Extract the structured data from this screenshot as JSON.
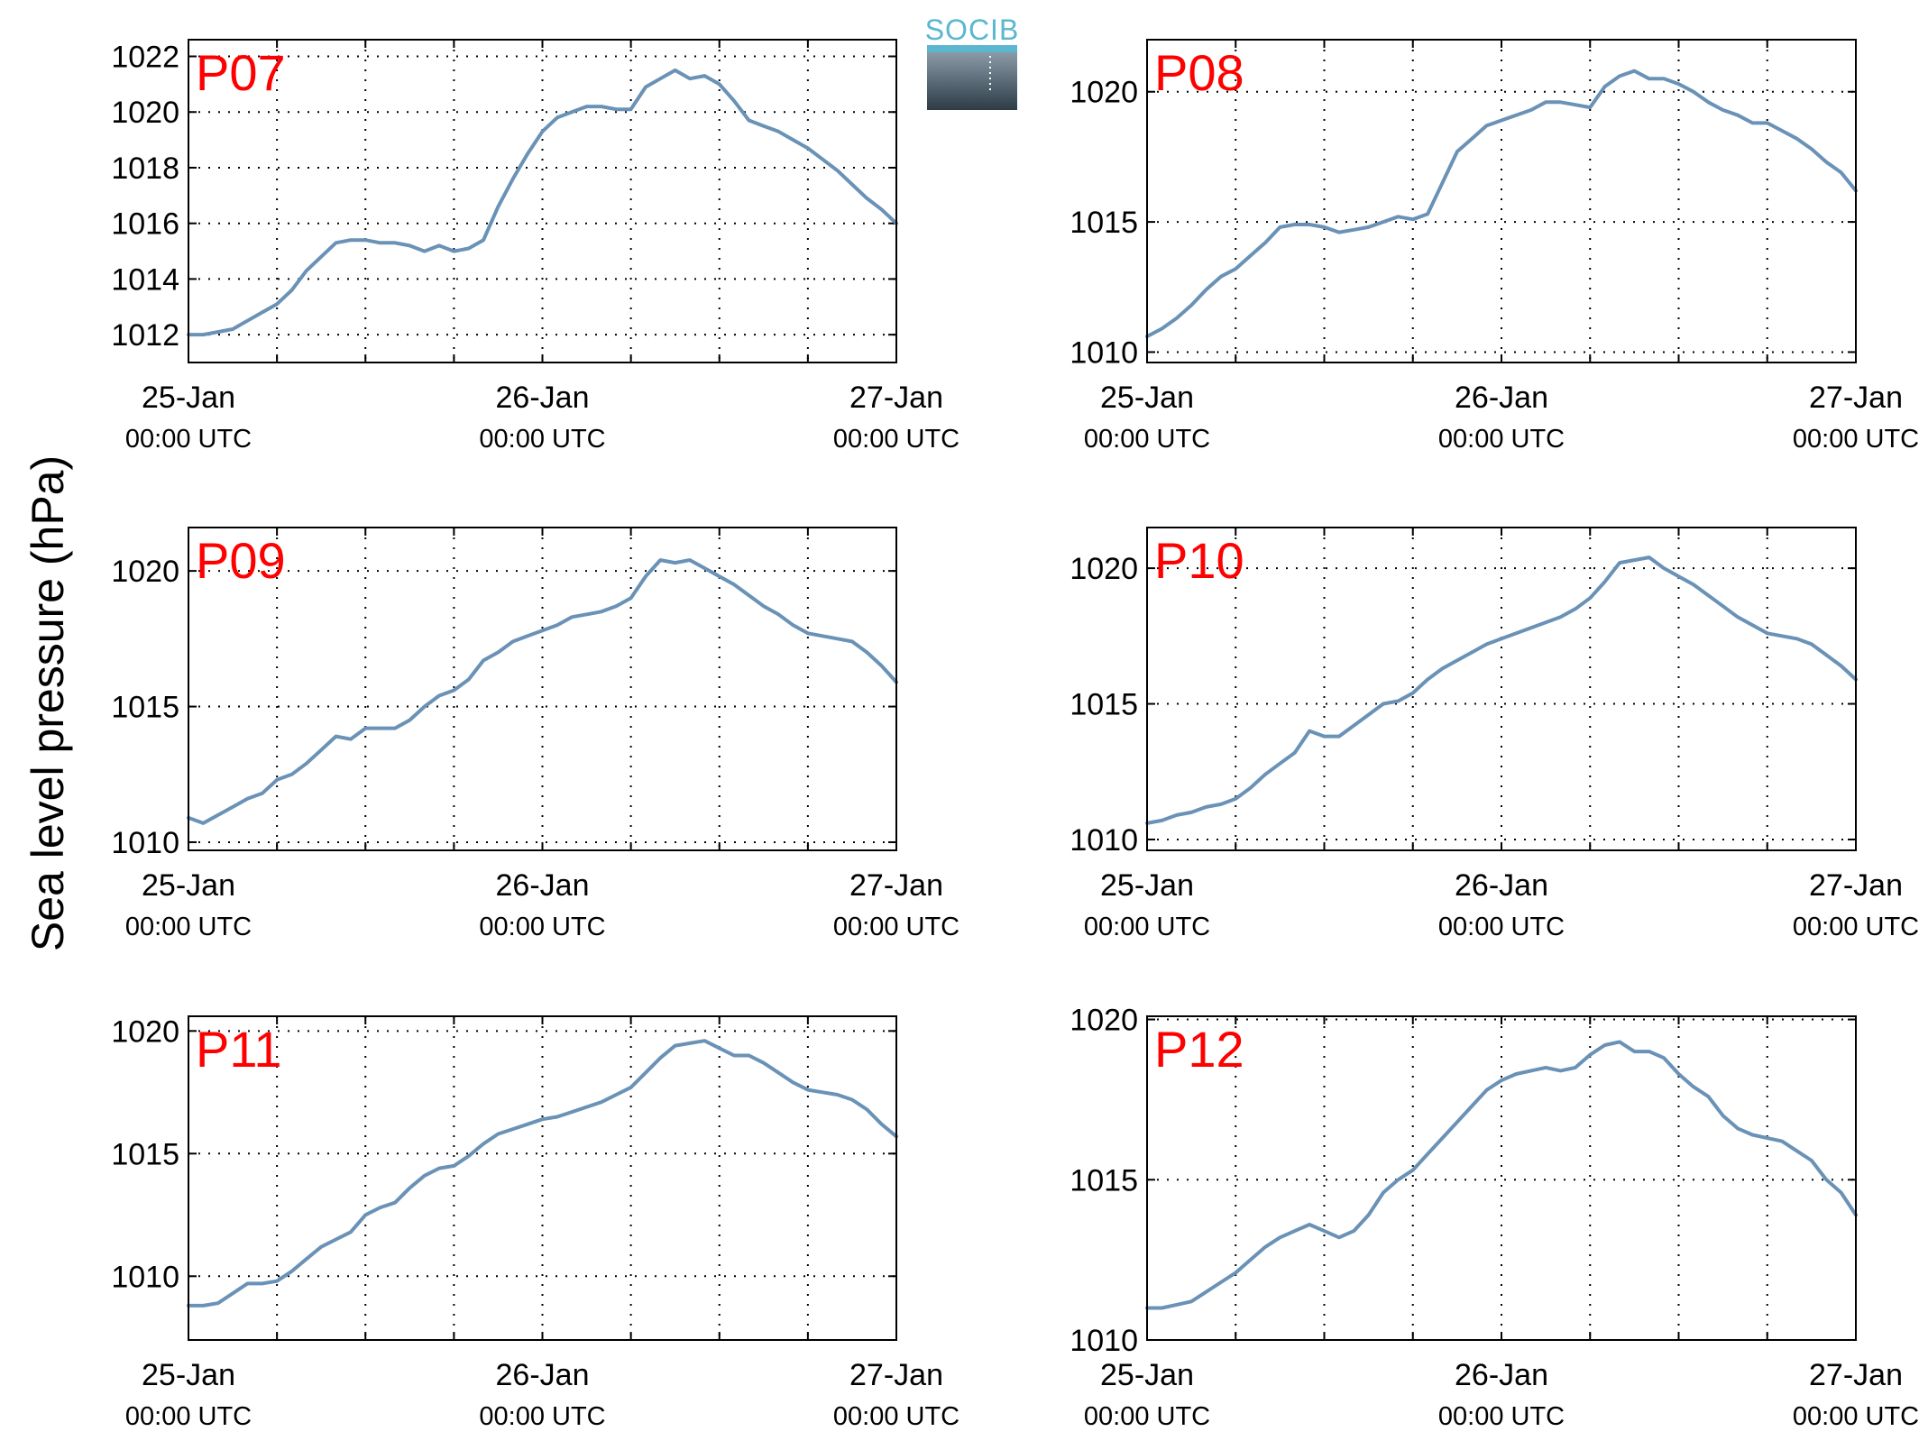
{
  "colors": {
    "series": "#6a92b6",
    "panel_label": "#ff0000",
    "logo_text": "#5ab7cf",
    "logo_top": "#8a9ba7",
    "logo_bottom": "#2d3c47"
  },
  "logo": {
    "text": "SOCIB"
  },
  "figure": {
    "ylabel": "Sea level pressure (hPa)"
  },
  "chart_data": [
    {
      "type": "line",
      "panel": "P07",
      "xlabel": "",
      "ylabel": "Sea level pressure (hPa)",
      "ylim": [
        1011,
        1022.6
      ],
      "xlim_hours": [
        0,
        48
      ],
      "yticks": [
        1012,
        1014,
        1016,
        1018,
        1020,
        1022
      ],
      "xticks": [
        {
          "date": "25-Jan",
          "time": "00:00 UTC"
        },
        {
          "date": "26-Jan",
          "time": "00:00 UTC"
        },
        {
          "date": "27-Jan",
          "time": "00:00 UTC"
        }
      ],
      "grid": true,
      "x": [
        0,
        1,
        2,
        3,
        4,
        5,
        6,
        7,
        8,
        9,
        10,
        11,
        12,
        13,
        14,
        15,
        16,
        17,
        18,
        19,
        20,
        21,
        22,
        23,
        24,
        25,
        26,
        27,
        28,
        29,
        30,
        31,
        32,
        33,
        34,
        35,
        36,
        37,
        38,
        39,
        40,
        41,
        42,
        43,
        44,
        45,
        46,
        47,
        48
      ],
      "y": [
        1012.0,
        1012.0,
        1012.1,
        1012.2,
        1012.5,
        1012.8,
        1013.1,
        1013.6,
        1014.3,
        1014.8,
        1015.3,
        1015.4,
        1015.4,
        1015.3,
        1015.3,
        1015.2,
        1015.0,
        1015.2,
        1015.0,
        1015.1,
        1015.4,
        1016.6,
        1017.6,
        1018.5,
        1019.3,
        1019.8,
        1020.0,
        1020.2,
        1020.2,
        1020.1,
        1020.1,
        1020.9,
        1021.2,
        1021.5,
        1021.2,
        1021.3,
        1021.0,
        1020.4,
        1019.7,
        1019.5,
        1019.3,
        1019.0,
        1018.7,
        1018.3,
        1017.9,
        1017.4,
        1016.9,
        1016.5,
        1016.0
      ]
    },
    {
      "type": "line",
      "panel": "P08",
      "xlabel": "",
      "ylabel": "Sea level pressure (hPa)",
      "ylim": [
        1009.6,
        1022
      ],
      "xlim_hours": [
        0,
        48
      ],
      "yticks": [
        1010,
        1015,
        1020
      ],
      "xticks": [
        {
          "date": "25-Jan",
          "time": "00:00 UTC"
        },
        {
          "date": "26-Jan",
          "time": "00:00 UTC"
        },
        {
          "date": "27-Jan",
          "time": "00:00 UTC"
        }
      ],
      "grid": true,
      "x": [
        0,
        1,
        2,
        3,
        4,
        5,
        6,
        7,
        8,
        9,
        10,
        11,
        12,
        13,
        14,
        15,
        16,
        17,
        18,
        19,
        20,
        21,
        22,
        23,
        24,
        25,
        26,
        27,
        28,
        29,
        30,
        31,
        32,
        33,
        34,
        35,
        36,
        37,
        38,
        39,
        40,
        41,
        42,
        43,
        44,
        45,
        46,
        47,
        48
      ],
      "y": [
        1010.6,
        1010.9,
        1011.3,
        1011.8,
        1012.4,
        1012.9,
        1013.2,
        1013.7,
        1014.2,
        1014.8,
        1014.9,
        1014.9,
        1014.8,
        1014.6,
        1014.7,
        1014.8,
        1015.0,
        1015.2,
        1015.1,
        1015.3,
        1016.5,
        1017.7,
        1018.2,
        1018.7,
        1018.9,
        1019.1,
        1019.3,
        1019.6,
        1019.6,
        1019.5,
        1019.4,
        1020.2,
        1020.6,
        1020.8,
        1020.5,
        1020.5,
        1020.3,
        1020.0,
        1019.6,
        1019.3,
        1019.1,
        1018.8,
        1018.8,
        1018.5,
        1018.2,
        1017.8,
        1017.3,
        1016.9,
        1016.2
      ]
    },
    {
      "type": "line",
      "panel": "P09",
      "xlabel": "",
      "ylabel": "Sea level pressure (hPa)",
      "ylim": [
        1009.7,
        1021.6
      ],
      "xlim_hours": [
        0,
        48
      ],
      "yticks": [
        1010,
        1015,
        1020
      ],
      "xticks": [
        {
          "date": "25-Jan",
          "time": "00:00 UTC"
        },
        {
          "date": "26-Jan",
          "time": "00:00 UTC"
        },
        {
          "date": "27-Jan",
          "time": "00:00 UTC"
        }
      ],
      "grid": true,
      "x": [
        0,
        1,
        2,
        3,
        4,
        5,
        6,
        7,
        8,
        9,
        10,
        11,
        12,
        13,
        14,
        15,
        16,
        17,
        18,
        19,
        20,
        21,
        22,
        23,
        24,
        25,
        26,
        27,
        28,
        29,
        30,
        31,
        32,
        33,
        34,
        35,
        36,
        37,
        38,
        39,
        40,
        41,
        42,
        43,
        44,
        45,
        46,
        47,
        48
      ],
      "y": [
        1010.9,
        1010.7,
        1011.0,
        1011.3,
        1011.6,
        1011.8,
        1012.3,
        1012.5,
        1012.9,
        1013.4,
        1013.9,
        1013.8,
        1014.2,
        1014.2,
        1014.2,
        1014.5,
        1015.0,
        1015.4,
        1015.6,
        1016.0,
        1016.7,
        1017.0,
        1017.4,
        1017.6,
        1017.8,
        1018.0,
        1018.3,
        1018.4,
        1018.5,
        1018.7,
        1019.0,
        1019.8,
        1020.4,
        1020.3,
        1020.4,
        1020.1,
        1019.8,
        1019.5,
        1019.1,
        1018.7,
        1018.4,
        1018.0,
        1017.7,
        1017.6,
        1017.5,
        1017.4,
        1017.0,
        1016.5,
        1015.9
      ]
    },
    {
      "type": "line",
      "panel": "P10",
      "xlabel": "",
      "ylabel": "Sea level pressure (hPa)",
      "ylim": [
        1009.6,
        1021.5
      ],
      "xlim_hours": [
        0,
        48
      ],
      "yticks": [
        1010,
        1015,
        1020
      ],
      "xticks": [
        {
          "date": "25-Jan",
          "time": "00:00 UTC"
        },
        {
          "date": "26-Jan",
          "time": "00:00 UTC"
        },
        {
          "date": "27-Jan",
          "time": "00:00 UTC"
        }
      ],
      "grid": true,
      "x": [
        0,
        1,
        2,
        3,
        4,
        5,
        6,
        7,
        8,
        9,
        10,
        11,
        12,
        13,
        14,
        15,
        16,
        17,
        18,
        19,
        20,
        21,
        22,
        23,
        24,
        25,
        26,
        27,
        28,
        29,
        30,
        31,
        32,
        33,
        34,
        35,
        36,
        37,
        38,
        39,
        40,
        41,
        42,
        43,
        44,
        45,
        46,
        47,
        48
      ],
      "y": [
        1010.6,
        1010.7,
        1010.9,
        1011.0,
        1011.2,
        1011.3,
        1011.5,
        1011.9,
        1012.4,
        1012.8,
        1013.2,
        1014.0,
        1013.8,
        1013.8,
        1014.2,
        1014.6,
        1015.0,
        1015.1,
        1015.4,
        1015.9,
        1016.3,
        1016.6,
        1016.9,
        1017.2,
        1017.4,
        1017.6,
        1017.8,
        1018.0,
        1018.2,
        1018.5,
        1018.9,
        1019.5,
        1020.2,
        1020.3,
        1020.4,
        1020.0,
        1019.7,
        1019.4,
        1019.0,
        1018.6,
        1018.2,
        1017.9,
        1017.6,
        1017.5,
        1017.4,
        1017.2,
        1016.8,
        1016.4,
        1015.9
      ]
    },
    {
      "type": "line",
      "panel": "P11",
      "xlabel": "",
      "ylabel": "Sea level pressure (hPa)",
      "ylim": [
        1007.4,
        1020.6
      ],
      "xlim_hours": [
        0,
        48
      ],
      "yticks": [
        1010,
        1015,
        1020
      ],
      "xticks": [
        {
          "date": "25-Jan",
          "time": "00:00 UTC"
        },
        {
          "date": "26-Jan",
          "time": "00:00 UTC"
        },
        {
          "date": "27-Jan",
          "time": "00:00 UTC"
        }
      ],
      "grid": true,
      "x": [
        0,
        1,
        2,
        3,
        4,
        5,
        6,
        7,
        8,
        9,
        10,
        11,
        12,
        13,
        14,
        15,
        16,
        17,
        18,
        19,
        20,
        21,
        22,
        23,
        24,
        25,
        26,
        27,
        28,
        29,
        30,
        31,
        32,
        33,
        34,
        35,
        36,
        37,
        38,
        39,
        40,
        41,
        42,
        43,
        44,
        45,
        46,
        47,
        48
      ],
      "y": [
        1008.8,
        1008.8,
        1008.9,
        1009.3,
        1009.7,
        1009.7,
        1009.8,
        1010.2,
        1010.7,
        1011.2,
        1011.5,
        1011.8,
        1012.5,
        1012.8,
        1013.0,
        1013.6,
        1014.1,
        1014.4,
        1014.5,
        1014.9,
        1015.4,
        1015.8,
        1016.0,
        1016.2,
        1016.4,
        1016.5,
        1016.7,
        1016.9,
        1017.1,
        1017.4,
        1017.7,
        1018.3,
        1018.9,
        1019.4,
        1019.5,
        1019.6,
        1019.3,
        1019.0,
        1019.0,
        1018.7,
        1018.3,
        1017.9,
        1017.6,
        1017.5,
        1017.4,
        1017.2,
        1016.8,
        1016.2,
        1015.7
      ]
    },
    {
      "type": "line",
      "panel": "P12",
      "xlabel": "",
      "ylabel": "Sea level pressure (hPa)",
      "ylim": [
        1010,
        1020.1
      ],
      "xlim_hours": [
        0,
        48
      ],
      "yticks": [
        1010,
        1015,
        1020
      ],
      "xticks": [
        {
          "date": "25-Jan",
          "time": "00:00 UTC"
        },
        {
          "date": "26-Jan",
          "time": "00:00 UTC"
        },
        {
          "date": "27-Jan",
          "time": "00:00 UTC"
        }
      ],
      "grid": true,
      "x": [
        0,
        1,
        2,
        3,
        4,
        5,
        6,
        7,
        8,
        9,
        10,
        11,
        12,
        13,
        14,
        15,
        16,
        17,
        18,
        19,
        20,
        21,
        22,
        23,
        24,
        25,
        26,
        27,
        28,
        29,
        30,
        31,
        32,
        33,
        34,
        35,
        36,
        37,
        38,
        39,
        40,
        41,
        42,
        43,
        44,
        45,
        46,
        47,
        48
      ],
      "y": [
        1011.0,
        1011.0,
        1011.1,
        1011.2,
        1011.5,
        1011.8,
        1012.1,
        1012.5,
        1012.9,
        1013.2,
        1013.4,
        1013.6,
        1013.4,
        1013.2,
        1013.4,
        1013.9,
        1014.6,
        1015.0,
        1015.3,
        1015.8,
        1016.3,
        1016.8,
        1017.3,
        1017.8,
        1018.1,
        1018.3,
        1018.4,
        1018.5,
        1018.4,
        1018.5,
        1018.9,
        1019.2,
        1019.3,
        1019.0,
        1019.0,
        1018.8,
        1018.3,
        1017.9,
        1017.6,
        1017.0,
        1016.6,
        1016.4,
        1016.3,
        1016.2,
        1015.9,
        1015.6,
        1015.0,
        1014.6,
        1013.9
      ]
    }
  ]
}
